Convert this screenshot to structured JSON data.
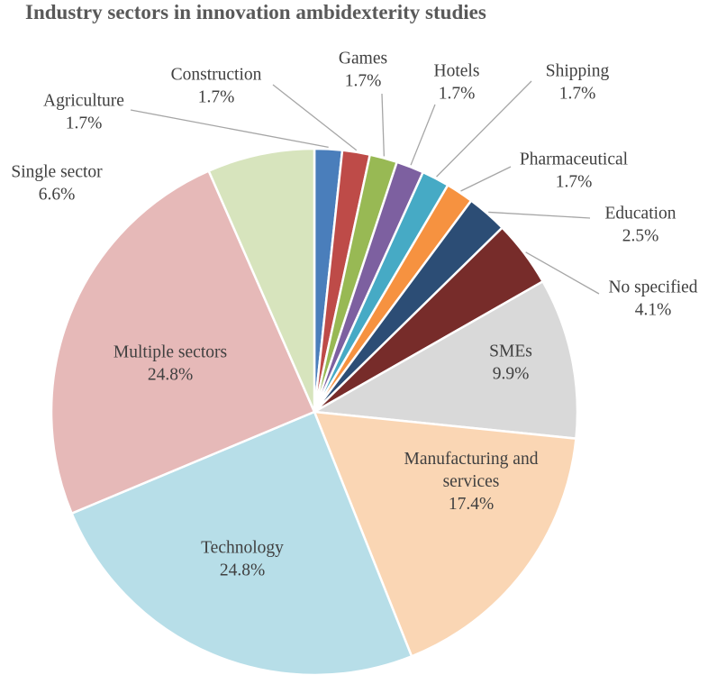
{
  "chart_data": {
    "type": "pie",
    "title": "Industry sectors in innovation ambidexterity studies",
    "slices": [
      {
        "label": "Agriculture",
        "value": 1.7,
        "display": "1.7%",
        "color": "#4a7ebb"
      },
      {
        "label": "Construction",
        "value": 1.7,
        "display": "1.7%",
        "color": "#be4b48"
      },
      {
        "label": "Games",
        "value": 1.7,
        "display": "1.7%",
        "color": "#98b954"
      },
      {
        "label": "Hotels",
        "value": 1.7,
        "display": "1.7%",
        "color": "#7d60a0"
      },
      {
        "label": "Shipping",
        "value": 1.7,
        "display": "1.7%",
        "color": "#46aac5"
      },
      {
        "label": "Pharmaceutical",
        "value": 1.7,
        "display": "1.7%",
        "color": "#f69240"
      },
      {
        "label": "Education",
        "value": 2.5,
        "display": "2.5%",
        "color": "#2c4d75"
      },
      {
        "label": "No specified",
        "value": 4.1,
        "display": "4.1%",
        "color": "#772c2a"
      },
      {
        "label": "SMEs",
        "value": 9.9,
        "display": "9.9%",
        "color": "#d9d9d9"
      },
      {
        "label": "Manufacturing and services",
        "value": 17.4,
        "display": "17.4%",
        "color": "#fad6b4"
      },
      {
        "label": "Technology",
        "value": 24.8,
        "display": "24.8%",
        "color": "#b7dee8"
      },
      {
        "label": "Multiple sectors",
        "value": 24.8,
        "display": "24.8%",
        "color": "#e6b9b8"
      },
      {
        "label": "Single sector",
        "value": 6.6,
        "display": "6.6%",
        "color": "#d7e4bd"
      }
    ],
    "label_color": "#404040",
    "leader_line_color": "#a6a6a6",
    "slice_border_color": "#ffffff"
  }
}
